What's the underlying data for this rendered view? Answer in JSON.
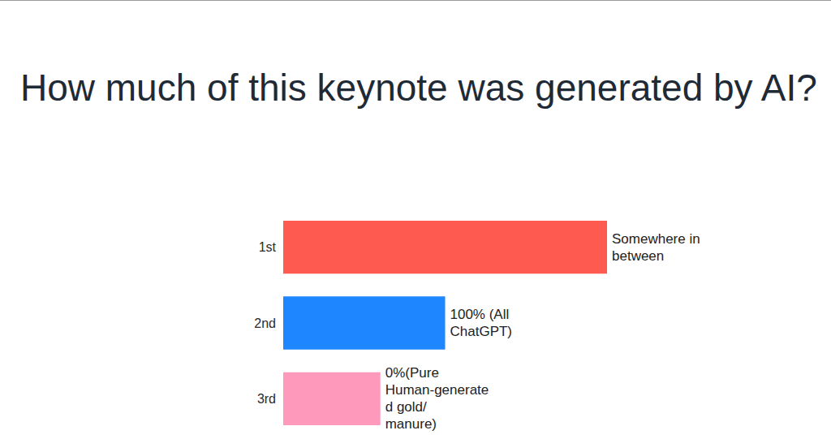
{
  "chart_data": {
    "type": "bar",
    "title": "How much of this keynote was generated by AI?",
    "orientation": "horizontal",
    "categories": [
      "1st",
      "2nd",
      "3rd"
    ],
    "values": [
      10,
      5,
      3
    ],
    "bar_labels": [
      "Somewhere in between",
      "100% (All ChatGPT)",
      "0%(Pure Human-generated gold/ manure)"
    ],
    "colors": [
      "#ff5a50",
      "#1e86ff",
      "#ff99bb"
    ],
    "xlim": [
      0,
      10
    ],
    "grid": false,
    "tick_labels": "y"
  }
}
